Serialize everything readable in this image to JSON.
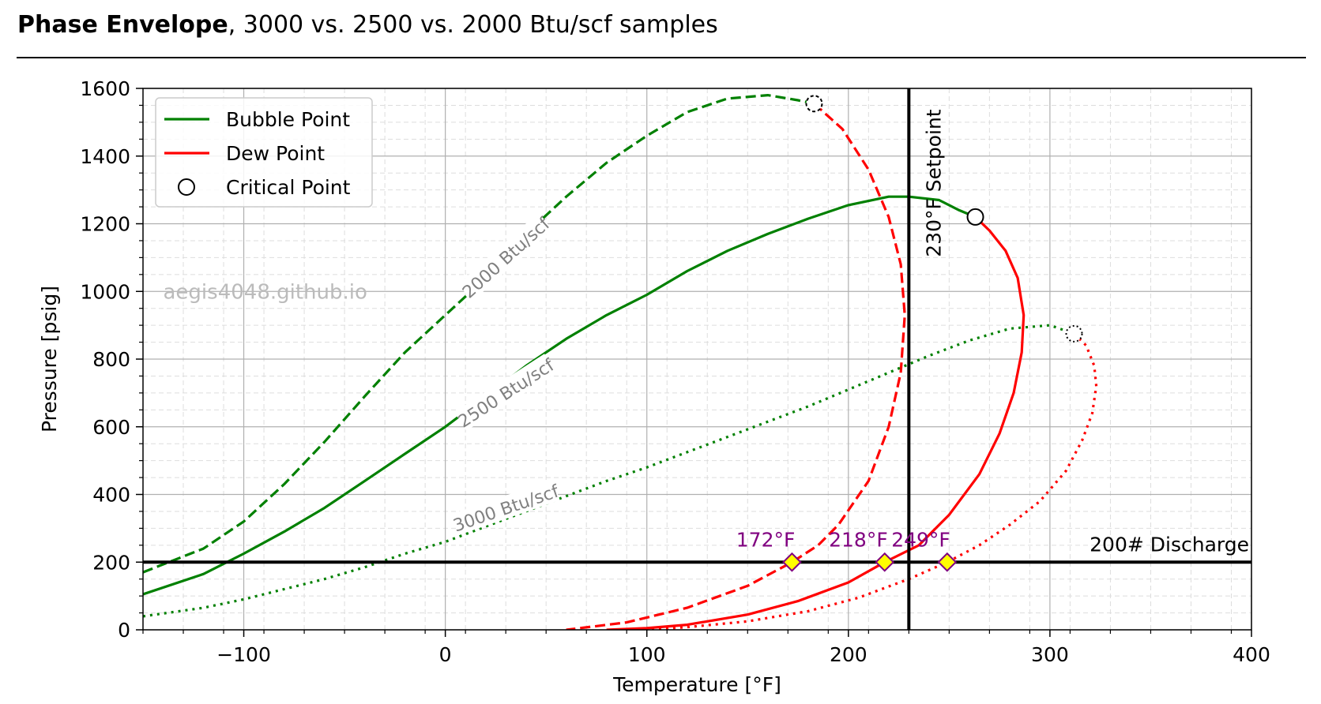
{
  "header": {
    "title_bold": "Phase Envelope",
    "title_rest": ", 3000 vs. 2500 vs. 2000 Btu/scf samples"
  },
  "watermark": "aegis4048.github.io",
  "colors": {
    "bubble": "#008000",
    "dew": "#ff0000",
    "label": "#808080",
    "temp_label": "#800080",
    "marker_fill": "#ffff00"
  },
  "chart_data": {
    "type": "line",
    "xlabel": "Temperature [°F]",
    "ylabel": "Pressure [psig]",
    "xlim": [
      -150,
      400
    ],
    "ylim": [
      0,
      1600
    ],
    "xticks": [
      -100,
      0,
      100,
      200,
      300,
      400
    ],
    "xtick_labels": [
      "−100",
      "0",
      "100",
      "200",
      "300",
      "400"
    ],
    "yticks": [
      0,
      200,
      400,
      600,
      800,
      1000,
      1200,
      1400,
      1600
    ],
    "ytick_labels": [
      "0",
      "200",
      "400",
      "600",
      "800",
      "1000",
      "1200",
      "1400",
      "1600"
    ],
    "grid": true,
    "legend": {
      "placement": "top-left",
      "entries": [
        {
          "label": "Bubble Point",
          "kind": "line",
          "color": "#008000"
        },
        {
          "label": "Dew Point",
          "kind": "line",
          "color": "#ff0000"
        },
        {
          "label": "Critical Point",
          "kind": "marker"
        }
      ]
    },
    "series": [
      {
        "sample": "2000 Btu/scf",
        "style": "dashed",
        "bubble": [
          [
            -150,
            170
          ],
          [
            -120,
            240
          ],
          [
            -100,
            320
          ],
          [
            -80,
            430
          ],
          [
            -60,
            555
          ],
          [
            -40,
            690
          ],
          [
            -20,
            820
          ],
          [
            0,
            930
          ],
          [
            20,
            1040
          ],
          [
            40,
            1170
          ],
          [
            60,
            1280
          ],
          [
            80,
            1380
          ],
          [
            100,
            1460
          ],
          [
            120,
            1530
          ],
          [
            140,
            1570
          ],
          [
            160,
            1580
          ],
          [
            175,
            1565
          ],
          [
            183,
            1555
          ]
        ],
        "dew": [
          [
            183,
            1555
          ],
          [
            197,
            1480
          ],
          [
            210,
            1360
          ],
          [
            220,
            1220
          ],
          [
            226,
            1080
          ],
          [
            228,
            930
          ],
          [
            226,
            760
          ],
          [
            220,
            600
          ],
          [
            210,
            440
          ],
          [
            195,
            310
          ],
          [
            185,
            250
          ],
          [
            172,
            200
          ],
          [
            150,
            130
          ],
          [
            120,
            65
          ],
          [
            90,
            22
          ],
          [
            60,
            0
          ]
        ],
        "critical": [
          183,
          1555
        ],
        "curve_label": "2000 Btu/scf"
      },
      {
        "sample": "2500 Btu/scf",
        "style": "solid",
        "bubble": [
          [
            -150,
            105
          ],
          [
            -120,
            165
          ],
          [
            -100,
            225
          ],
          [
            -80,
            290
          ],
          [
            -60,
            360
          ],
          [
            -40,
            440
          ],
          [
            -20,
            520
          ],
          [
            0,
            600
          ],
          [
            20,
            690
          ],
          [
            40,
            780
          ],
          [
            60,
            860
          ],
          [
            80,
            930
          ],
          [
            100,
            990
          ],
          [
            120,
            1060
          ],
          [
            140,
            1120
          ],
          [
            160,
            1170
          ],
          [
            180,
            1215
          ],
          [
            200,
            1255
          ],
          [
            220,
            1280
          ],
          [
            230,
            1280
          ],
          [
            245,
            1270
          ],
          [
            255,
            1240
          ],
          [
            263,
            1220
          ]
        ],
        "dew": [
          [
            263,
            1220
          ],
          [
            270,
            1180
          ],
          [
            278,
            1120
          ],
          [
            284,
            1040
          ],
          [
            287,
            930
          ],
          [
            286,
            820
          ],
          [
            282,
            700
          ],
          [
            275,
            580
          ],
          [
            265,
            460
          ],
          [
            250,
            340
          ],
          [
            235,
            250
          ],
          [
            218,
            200
          ],
          [
            200,
            140
          ],
          [
            175,
            85
          ],
          [
            150,
            45
          ],
          [
            120,
            15
          ],
          [
            100,
            5
          ],
          [
            80,
            0
          ]
        ],
        "critical": [
          263,
          1220
        ],
        "curve_label": "2500 Btu/scf"
      },
      {
        "sample": "3000 Btu/scf",
        "style": "dotted",
        "bubble": [
          [
            -150,
            40
          ],
          [
            -120,
            65
          ],
          [
            -100,
            90
          ],
          [
            -80,
            120
          ],
          [
            -60,
            150
          ],
          [
            -40,
            185
          ],
          [
            -20,
            225
          ],
          [
            0,
            260
          ],
          [
            20,
            305
          ],
          [
            40,
            350
          ],
          [
            60,
            395
          ],
          [
            80,
            440
          ],
          [
            100,
            480
          ],
          [
            120,
            525
          ],
          [
            140,
            570
          ],
          [
            160,
            615
          ],
          [
            180,
            660
          ],
          [
            200,
            710
          ],
          [
            220,
            760
          ],
          [
            240,
            810
          ],
          [
            260,
            855
          ],
          [
            280,
            890
          ],
          [
            300,
            900
          ],
          [
            312,
            875
          ]
        ],
        "dew": [
          [
            312,
            875
          ],
          [
            318,
            840
          ],
          [
            322,
            780
          ],
          [
            323,
            720
          ],
          [
            321,
            640
          ],
          [
            316,
            560
          ],
          [
            308,
            470
          ],
          [
            295,
            380
          ],
          [
            280,
            310
          ],
          [
            265,
            250
          ],
          [
            249,
            200
          ],
          [
            230,
            150
          ],
          [
            205,
            95
          ],
          [
            180,
            55
          ],
          [
            150,
            25
          ],
          [
            120,
            8
          ],
          [
            100,
            0
          ]
        ],
        "critical": [
          312,
          875
        ],
        "curve_label": "3000 Btu/scf"
      }
    ],
    "reference_lines": [
      {
        "orientation": "vertical",
        "x": 230,
        "label": "230°F Setpoint"
      },
      {
        "orientation": "horizontal",
        "y": 200,
        "label": "200# Discharge"
      }
    ],
    "intersections": [
      {
        "x": 172,
        "y": 200,
        "label": "172°F"
      },
      {
        "x": 218,
        "y": 200,
        "label": "218°F"
      },
      {
        "x": 249,
        "y": 200,
        "label": "249°F"
      }
    ]
  }
}
